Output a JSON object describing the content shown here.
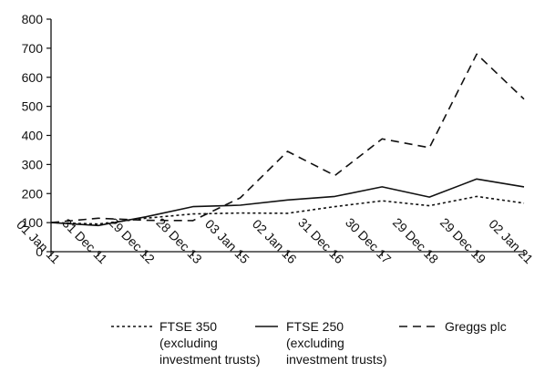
{
  "chart_data": {
    "type": "line",
    "title": "",
    "xlabel": "",
    "ylabel": "",
    "ylim": [
      0,
      800
    ],
    "yticks": [
      0,
      100,
      200,
      300,
      400,
      500,
      600,
      700,
      800
    ],
    "categories": [
      "01 Jan 11",
      "31 Dec 11",
      "29 Dec 12",
      "28 Dec 13",
      "03 Jan 15",
      "02 Jan 16",
      "31 Dec 16",
      "30 Dec 17",
      "29 Dec 18",
      "29 Dec 19",
      "02 Jan 21"
    ],
    "grid": false,
    "legend_position": "bottom",
    "series": [
      {
        "name": "FTSE 350 (excluding investment trusts)",
        "legend_lines": [
          "FTSE 350",
          "(excluding",
          "investment trusts)"
        ],
        "style": "dotted",
        "values": [
          100,
          95,
          115,
          130,
          133,
          132,
          155,
          175,
          158,
          190,
          167
        ]
      },
      {
        "name": "FTSE 250 (excluding investment trusts)",
        "legend_lines": [
          "FTSE 250",
          "(excluding",
          "investment trusts)"
        ],
        "style": "solid",
        "values": [
          100,
          90,
          120,
          155,
          160,
          178,
          190,
          223,
          188,
          250,
          223
        ]
      },
      {
        "name": "Greggs plc",
        "legend_lines": [
          "Greggs plc"
        ],
        "style": "dashed",
        "values": [
          100,
          115,
          108,
          107,
          185,
          345,
          262,
          388,
          358,
          680,
          525
        ]
      }
    ]
  }
}
